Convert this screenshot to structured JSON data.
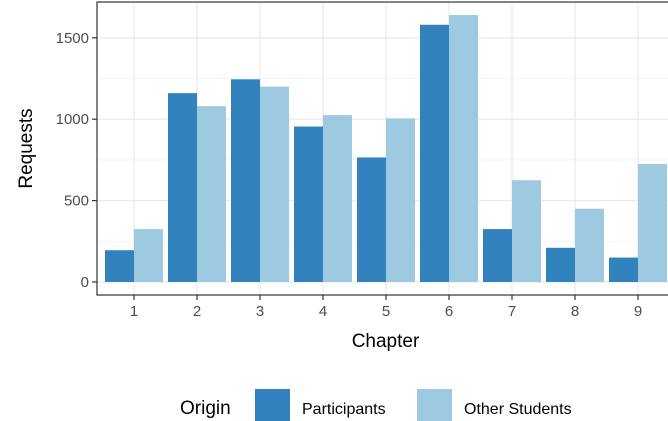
{
  "chart_data": {
    "type": "bar",
    "title": "",
    "xlabel": "Chapter",
    "ylabel": "Requests",
    "categories": [
      "1",
      "2",
      "3",
      "4",
      "5",
      "6",
      "7",
      "8",
      "9"
    ],
    "series": [
      {
        "name": "Participants",
        "color": "#3182bd",
        "values": [
          195,
          1160,
          1245,
          955,
          765,
          1580,
          325,
          210,
          150
        ]
      },
      {
        "name": "Other Students",
        "color": "#9ecae1",
        "values": [
          325,
          1080,
          1200,
          1025,
          1005,
          1640,
          625,
          450,
          725
        ]
      }
    ],
    "ylim": [
      -80,
      1720
    ],
    "yticks": [
      0,
      500,
      1000,
      1500
    ],
    "grid": true,
    "legend": {
      "title": "Origin",
      "position": "bottom"
    }
  }
}
